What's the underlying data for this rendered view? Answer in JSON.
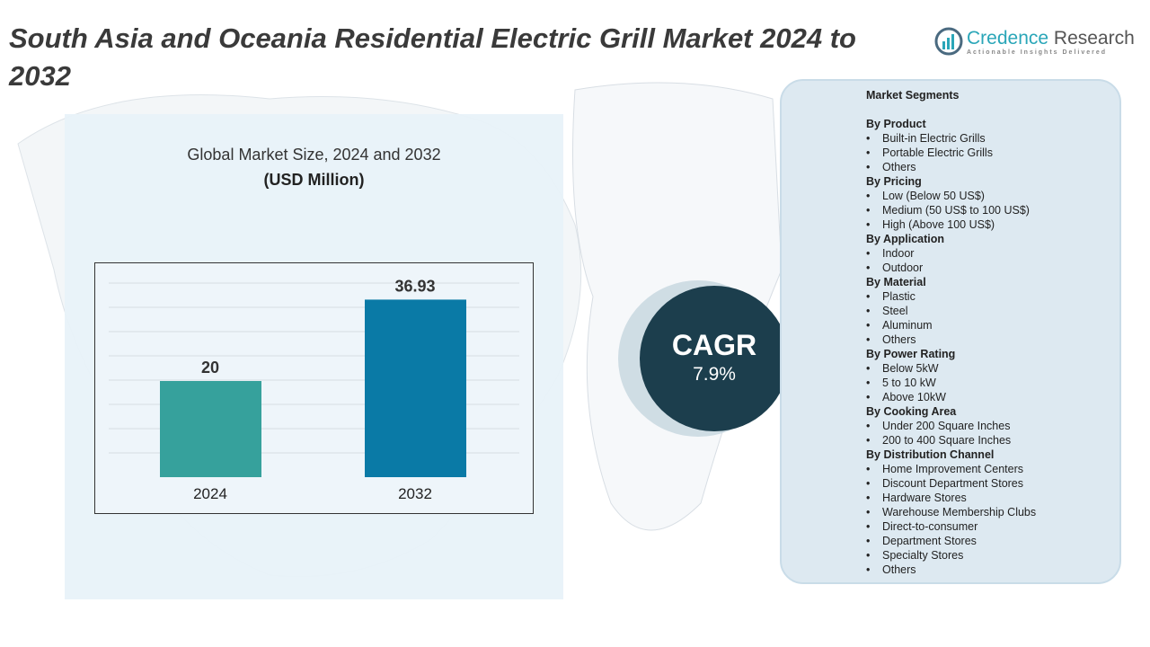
{
  "title": "South Asia and Oceania Residential Electric Grill Market 2024 to 2032",
  "logo": {
    "name1": "Credence",
    "name2": " Research",
    "tagline": "Actionable Insights Delivered"
  },
  "colors": {
    "bar_2024": "#36a19c",
    "bar_2032": "#0a7aa6",
    "cagr_bg": "#1c3e4d"
  },
  "chart_data": {
    "type": "bar",
    "title": "Global Market Size, 2024 and 2032",
    "subtitle": "(USD Million)",
    "categories": [
      "2024",
      "2032"
    ],
    "values": [
      20,
      36.93
    ],
    "labels": [
      "20",
      "36.93"
    ],
    "grid": true
  },
  "cagr": {
    "label": "CAGR",
    "value": "7.9%"
  },
  "segments": {
    "title": "Market Segments",
    "groups": [
      {
        "name": "By Product",
        "items": [
          "Built-in Electric Grills",
          "Portable Electric Grills",
          "Others"
        ]
      },
      {
        "name": "By Pricing",
        "items": [
          "Low (Below 50 US$)",
          "Medium (50 US$ to 100 US$)",
          "High (Above 100 US$)"
        ]
      },
      {
        "name": "By Application",
        "items": [
          "Indoor",
          "Outdoor"
        ]
      },
      {
        "name": "By Material",
        "items": [
          "Plastic",
          "Steel",
          "Aluminum",
          "Others"
        ]
      },
      {
        "name": "By Power Rating",
        "items": [
          "Below 5kW",
          "5 to 10 kW",
          "Above 10kW"
        ]
      },
      {
        "name": "By Cooking Area",
        "items": [
          "Under 200 Square Inches",
          "200 to 400 Square Inches"
        ]
      },
      {
        "name": "By Distribution Channel",
        "items": [
          "Home Improvement Centers",
          "Discount Department Stores",
          "Hardware Stores",
          "Warehouse Membership Clubs",
          "Direct-to-consumer",
          "Department Stores",
          "Specialty Stores",
          "Others"
        ]
      }
    ]
  }
}
